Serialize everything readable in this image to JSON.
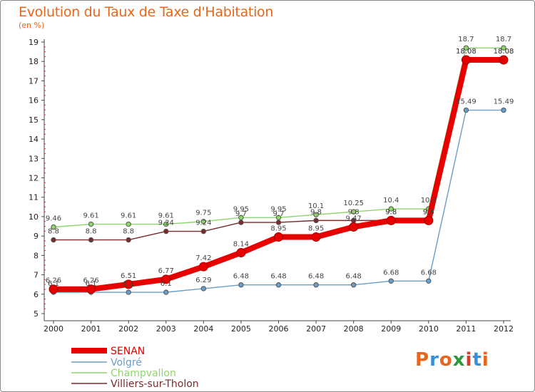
{
  "title": "Evolution du Taux de Taxe d'Habitation",
  "subtitle": "(en %)",
  "logo": {
    "text": "Proxiti",
    "letter_colors": [
      "#e8661b",
      "#3a8fd8",
      "#e8661b",
      "#2b9a3f",
      "#d93b2b",
      "#3a8fd8",
      "#e8661b"
    ]
  },
  "chart_data": {
    "type": "line",
    "x": [
      2000,
      2001,
      2002,
      2003,
      2004,
      2005,
      2006,
      2007,
      2008,
      2009,
      2010,
      2011,
      2012
    ],
    "ylim": [
      5,
      19
    ],
    "yticks": [
      5,
      6,
      7,
      8,
      9,
      10,
      11,
      12,
      13,
      14,
      15,
      16,
      17,
      18,
      19
    ],
    "grid": false,
    "legend_position": "bottom-left",
    "series": [
      {
        "name": "SENAN",
        "color": "#e80000",
        "values": [
          6.26,
          6.26,
          6.51,
          6.77,
          7.42,
          8.14,
          8.95,
          8.95,
          9.47,
          9.8,
          9.8,
          18.08,
          18.08
        ],
        "labels": [
          "6.26",
          "6.26",
          "6.51",
          "6.77",
          "7.42",
          "8.14",
          "8.95",
          "8.95",
          "9.47",
          "9.8",
          "9.8",
          "18.08",
          "18.08"
        ]
      },
      {
        "name": "Volgré",
        "color": "#6a9ec8",
        "values": [
          6.1,
          6.1,
          6.1,
          6.1,
          6.29,
          6.48,
          6.48,
          6.48,
          6.48,
          6.68,
          6.68,
          15.49,
          15.49
        ],
        "labels": [
          "6.1",
          "6.1",
          "6.1",
          "6.1",
          "6.29",
          "6.48",
          "6.48",
          "6.48",
          "6.48",
          "6.68",
          "6.68",
          "15.49",
          "15.49"
        ]
      },
      {
        "name": "Champvallon",
        "color": "#8ed66a",
        "values": [
          9.46,
          9.61,
          9.61,
          9.61,
          9.75,
          9.95,
          9.95,
          10.1,
          10.25,
          10.4,
          10.4,
          18.7,
          18.7
        ],
        "labels": [
          "9.46",
          "9.61",
          "9.61",
          "9.61",
          "9.75",
          "9.95",
          "9.95",
          "10.1",
          "10.25",
          "10.4",
          "10.4",
          "18.7",
          "18.7"
        ]
      },
      {
        "name": "Villiers-sur-Tholon",
        "color": "#7a2a2a",
        "values": [
          8.8,
          8.8,
          8.8,
          9.24,
          9.24,
          9.7,
          9.7,
          9.8,
          9.8,
          9.8,
          9.8,
          18.08,
          18.08
        ],
        "labels": [
          "8.8",
          "8.8",
          "8.8",
          "9.24",
          "9.24",
          "9.7",
          "9.7",
          "9.8",
          "9.8",
          "9.8",
          "9.8",
          "18.08",
          "18.08"
        ]
      }
    ]
  }
}
